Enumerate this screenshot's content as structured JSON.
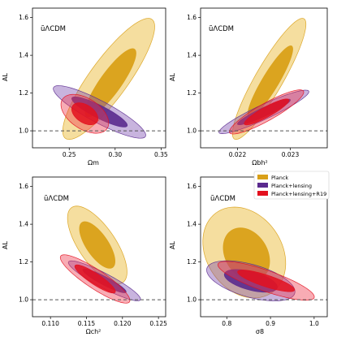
{
  "colors": {
    "planck": "#e6b01a",
    "planck_inner": "#d9a018",
    "lensing": "#7b4db0",
    "lensing_inner": "#5a2a8e",
    "r19": "#ee3a4c",
    "r19_inner": "#e3101e",
    "refline": "#555555"
  },
  "legend": {
    "placement": "top-right of panel 4",
    "items": [
      {
        "label": "Planck",
        "color": "#d9a018"
      },
      {
        "label": "Planck+lensing",
        "color": "#5a2a8e"
      },
      {
        "label": "Planck+lensing+R19",
        "color": "#e3101e"
      }
    ]
  },
  "chart_data": [
    {
      "type": "contour",
      "title": "ũΛCDM",
      "xlabel": "Ωm",
      "ylabel": "AL",
      "xlim": [
        0.21,
        0.355
      ],
      "ylim": [
        0.91,
        1.65
      ],
      "xticks": [
        0.25,
        0.3,
        0.35
      ],
      "xtick_labels": [
        "0.25",
        "0.30",
        "0.35"
      ],
      "yticks": [
        1.0,
        1.2,
        1.4,
        1.6
      ],
      "ytick_labels": [
        "1.0",
        "1.2",
        "1.4",
        "1.6"
      ],
      "reference_line_y": 1.0,
      "series": [
        {
          "name": "Planck",
          "level": "95%",
          "center": [
            0.293,
            1.275
          ],
          "axis_u": [
            0.045,
            0.32
          ],
          "axis_v": [
            -0.022,
            0.025
          ]
        },
        {
          "name": "Planck",
          "level": "68%",
          "center": [
            0.295,
            1.255
          ],
          "axis_u": [
            0.025,
            0.18
          ],
          "axis_v": [
            -0.012,
            0.014
          ]
        },
        {
          "name": "Planck+lensing",
          "level": "95%",
          "center": [
            0.283,
            1.1
          ],
          "axis_u": [
            0.05,
            -0.13
          ],
          "axis_v": [
            0.006,
            0.05
          ]
        },
        {
          "name": "Planck+lensing",
          "level": "68%",
          "center": [
            0.283,
            1.1
          ],
          "axis_u": [
            0.03,
            -0.075
          ],
          "axis_v": [
            0.004,
            0.028
          ]
        },
        {
          "name": "Planck+lensing+R19",
          "level": "95%",
          "center": [
            0.267,
            1.09
          ],
          "axis_u": [
            0.024,
            -0.08
          ],
          "axis_v": [
            0.01,
            0.065
          ]
        },
        {
          "name": "Planck+lensing+R19",
          "level": "68%",
          "center": [
            0.267,
            1.09
          ],
          "axis_u": [
            0.013,
            -0.045
          ],
          "axis_v": [
            0.006,
            0.037
          ]
        }
      ]
    },
    {
      "type": "contour",
      "title": "ũΛCDM",
      "xlabel": "Ωbh²",
      "ylabel": "AL",
      "xlim": [
        0.0213,
        0.0237
      ],
      "ylim": [
        0.91,
        1.65
      ],
      "xticks": [
        0.022,
        0.023
      ],
      "xtick_labels": [
        "0.022",
        "0.023"
      ],
      "yticks": [
        1.0,
        1.2,
        1.4,
        1.6
      ],
      "ytick_labels": [
        "1.0",
        "1.2",
        "1.4",
        "1.6"
      ],
      "reference_line_y": 1.0,
      "series": [
        {
          "name": "Planck",
          "level": "95%",
          "center": [
            0.0226,
            1.275
          ],
          "axis_u": [
            0.00065,
            0.32
          ],
          "axis_v": [
            -0.00025,
            0.025
          ]
        },
        {
          "name": "Planck",
          "level": "68%",
          "center": [
            0.02262,
            1.26
          ],
          "axis_u": [
            0.0004,
            0.19
          ],
          "axis_v": [
            -0.00015,
            0.014
          ]
        },
        {
          "name": "Planck+lensing",
          "level": "95%",
          "center": [
            0.0225,
            1.1
          ],
          "axis_u": [
            0.00085,
            0.11
          ],
          "axis_v": [
            -6e-05,
            0.035
          ]
        },
        {
          "name": "Planck+lensing",
          "level": "68%",
          "center": [
            0.0225,
            1.1
          ],
          "axis_u": [
            0.0005,
            0.065
          ],
          "axis_v": [
            -4e-05,
            0.02
          ]
        },
        {
          "name": "Planck+lensing+R19",
          "level": "95%",
          "center": [
            0.02255,
            1.1
          ],
          "axis_u": [
            0.0007,
            0.11
          ],
          "axis_v": [
            -8e-05,
            0.04
          ]
        },
        {
          "name": "Planck+lensing+R19",
          "level": "68%",
          "center": [
            0.02255,
            1.1
          ],
          "axis_u": [
            0.00042,
            0.065
          ],
          "axis_v": [
            -5e-05,
            0.023
          ]
        }
      ]
    },
    {
      "type": "contour",
      "title": "ũΛCDM",
      "xlabel": "Ωch²",
      "ylabel": "AL",
      "xlim": [
        0.1075,
        0.126
      ],
      "ylim": [
        0.91,
        1.65
      ],
      "xticks": [
        0.11,
        0.115,
        0.12,
        0.125
      ],
      "xtick_labels": [
        "0.110",
        "0.115",
        "0.120",
        "0.125"
      ],
      "yticks": [
        1.0,
        1.2,
        1.4,
        1.6
      ],
      "ytick_labels": [
        "1.0",
        "1.2",
        "1.4",
        "1.6"
      ],
      "reference_line_y": 1.0,
      "series": [
        {
          "name": "Planck",
          "level": "95%",
          "center": [
            0.1165,
            1.29
          ],
          "axis_u": [
            0.0035,
            -0.2
          ],
          "axis_v": [
            0.0022,
            0.05
          ]
        },
        {
          "name": "Planck",
          "level": "68%",
          "center": [
            0.1165,
            1.29
          ],
          "axis_u": [
            0.0021,
            -0.12
          ],
          "axis_v": [
            0.0013,
            0.03
          ]
        },
        {
          "name": "Planck+lensing",
          "level": "95%",
          "center": [
            0.1175,
            1.1
          ],
          "axis_u": [
            0.005,
            -0.1
          ],
          "axis_v": [
            0.0004,
            0.035
          ]
        },
        {
          "name": "Planck+lensing",
          "level": "68%",
          "center": [
            0.1175,
            1.1
          ],
          "axis_u": [
            0.003,
            -0.06
          ],
          "axis_v": [
            0.00025,
            0.02
          ]
        },
        {
          "name": "Planck+lensing+R19",
          "level": "95%",
          "center": [
            0.1162,
            1.11
          ],
          "axis_u": [
            0.0048,
            -0.12
          ],
          "axis_v": [
            0.0006,
            0.045
          ]
        },
        {
          "name": "Planck+lensing+R19",
          "level": "68%",
          "center": [
            0.1162,
            1.11
          ],
          "axis_u": [
            0.0028,
            -0.07
          ],
          "axis_v": [
            0.00035,
            0.026
          ]
        }
      ]
    },
    {
      "type": "contour",
      "title": "ũΛCDM",
      "xlabel": "σ8",
      "ylabel": "AL",
      "xlim": [
        0.74,
        1.03
      ],
      "ylim": [
        0.91,
        1.65
      ],
      "xticks": [
        0.8,
        0.9,
        1.0
      ],
      "xtick_labels": [
        "0.8",
        "0.9",
        "1.0"
      ],
      "yticks": [
        1.0,
        1.2,
        1.4,
        1.6
      ],
      "ytick_labels": [
        "1.0",
        "1.2",
        "1.4",
        "1.6"
      ],
      "reference_line_y": 1.0,
      "series": [
        {
          "name": "Planck",
          "level": "95%",
          "center": [
            0.84,
            1.25
          ],
          "axis_u": [
            0.03,
            -0.24
          ],
          "axis_v": [
            0.09,
            0.02
          ]
        },
        {
          "name": "Planck",
          "level": "68%",
          "center": [
            0.845,
            1.24
          ],
          "axis_u": [
            0.018,
            -0.14
          ],
          "axis_v": [
            0.05,
            0.012
          ]
        },
        {
          "name": "Planck+lensing",
          "level": "95%",
          "center": [
            0.855,
            1.1
          ],
          "axis_u": [
            0.1,
            -0.07
          ],
          "axis_v": [
            0.015,
            0.08
          ]
        },
        {
          "name": "Planck+lensing",
          "level": "68%",
          "center": [
            0.855,
            1.1
          ],
          "axis_u": [
            0.06,
            -0.04
          ],
          "axis_v": [
            0.009,
            0.045
          ]
        },
        {
          "name": "Planck+lensing+R19",
          "level": "95%",
          "center": [
            0.89,
            1.1
          ],
          "axis_u": [
            0.11,
            -0.09
          ],
          "axis_v": [
            0.01,
            0.05
          ]
        },
        {
          "name": "Planck+lensing+R19",
          "level": "68%",
          "center": [
            0.89,
            1.1
          ],
          "axis_u": [
            0.065,
            -0.05
          ],
          "axis_v": [
            0.006,
            0.028
          ]
        }
      ]
    }
  ]
}
